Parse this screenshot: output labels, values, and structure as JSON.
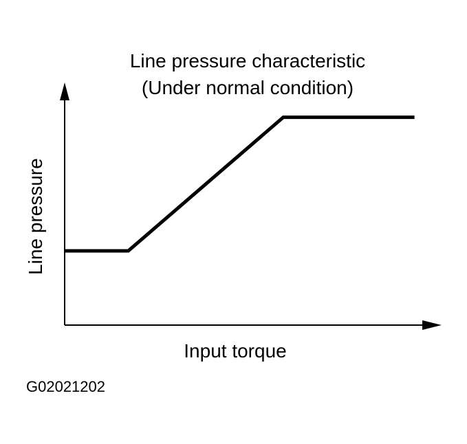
{
  "chart_data": {
    "type": "line",
    "title": "Line pressure characteristic",
    "subtitle": "(Under normal condition)",
    "xlabel": "Input torque",
    "ylabel": "Line pressure",
    "grid": false,
    "series": [
      {
        "x": [
          0,
          0.16,
          0.55,
          0.88
        ],
        "y": [
          0.25,
          0.25,
          0.7,
          0.7
        ]
      }
    ],
    "xlim": [
      0,
      1
    ],
    "ylim": [
      0,
      1
    ]
  },
  "figure_code": "G02021202",
  "colors": {
    "line": "#000000",
    "axis": "#000000",
    "background": "#ffffff"
  }
}
